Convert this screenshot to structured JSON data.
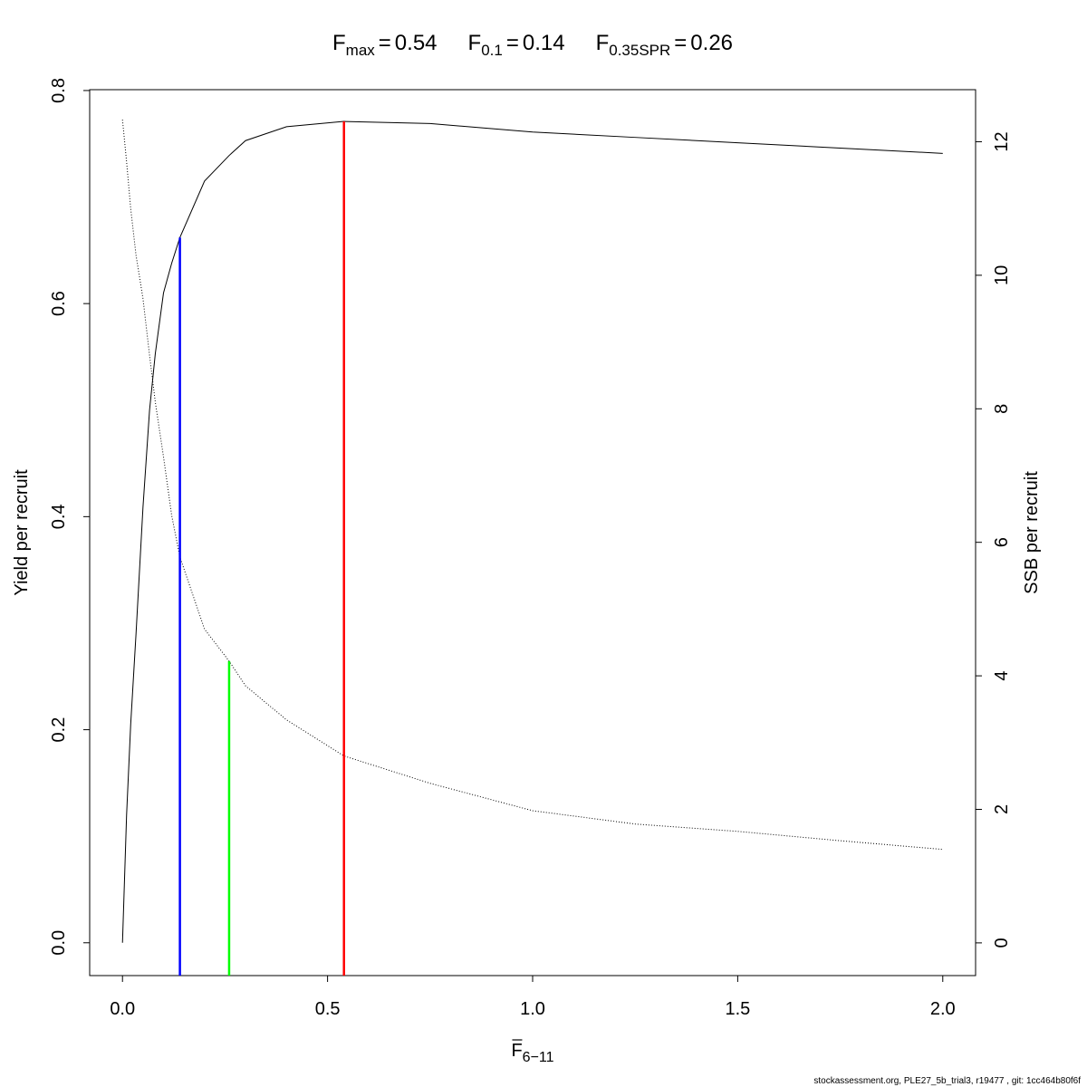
{
  "chart_data": {
    "type": "line",
    "title": [
      {
        "label": "F",
        "subscript": "max",
        "operator": "=",
        "value": 0.54,
        "color": "#ff0000",
        "top": 0.771,
        "top_axis": "y"
      },
      {
        "label": "F",
        "subscript": "0.1",
        "operator": "=",
        "value": 0.14,
        "color": "#0000ff",
        "top": 0.662,
        "top_axis": "y"
      },
      {
        "label": "F",
        "subscript": "0.35SPR",
        "operator": "=",
        "value": 0.26,
        "color": "#00ff00",
        "top": 4.22,
        "top_axis": "y2"
      }
    ],
    "xlabel": {
      "label": "F",
      "subscript": "6−11"
    },
    "ylabel": "Yield per recruit",
    "y2label": "SSB per recruit",
    "footnote": "stockassessment.org, PLE27_5b_trial3, r19477 , git: 1cc464b80f6f",
    "x": [
      0,
      0.01,
      0.02,
      0.033,
      0.05,
      0.066,
      0.08,
      0.1,
      0.12,
      0.14,
      0.2,
      0.26,
      0.3,
      0.4,
      0.54,
      0.75,
      1.0,
      1.25,
      1.5,
      1.75,
      2.0
    ],
    "series": [
      {
        "style": "solid",
        "color": "#000000",
        "values": [
          0,
          0.12,
          0.205,
          0.29,
          0.409,
          0.5,
          0.553,
          0.61,
          0.638,
          0.662,
          0.715,
          0.739,
          0.753,
          0.766,
          0.771,
          0.769,
          0.761,
          0.756,
          0.751,
          0.746,
          0.741
        ]
      },
      {
        "style": "dotted",
        "color": "#000000",
        "axis": "y2",
        "values": [
          12.33,
          11.7,
          11.0,
          10.3,
          9.65,
          8.8,
          8.1,
          7.28,
          6.4,
          5.78,
          4.7,
          4.22,
          3.85,
          3.34,
          2.8,
          2.39,
          1.98,
          1.78,
          1.67,
          1.53,
          1.4
        ]
      }
    ],
    "xlim": [
      -0.08,
      2.08
    ],
    "ylim": [
      -0.0308,
      0.8008
    ],
    "y2lim": [
      -0.49,
      12.78
    ],
    "xticks": [
      {
        "value": 0,
        "label": "0.0"
      },
      {
        "value": 0.5,
        "label": "0.5"
      },
      {
        "value": 1,
        "label": "1.0"
      },
      {
        "value": 1.5,
        "label": "1.5"
      },
      {
        "value": 2,
        "label": "2.0"
      }
    ],
    "yticks": [
      {
        "value": 0,
        "label": "0.0"
      },
      {
        "value": 0.2,
        "label": "0.2"
      },
      {
        "value": 0.4,
        "label": "0.4"
      },
      {
        "value": 0.6,
        "label": "0.6"
      },
      {
        "value": 0.8,
        "label": "0.8"
      }
    ],
    "y2ticks": [
      0,
      2,
      4,
      6,
      8,
      10,
      12
    ]
  }
}
